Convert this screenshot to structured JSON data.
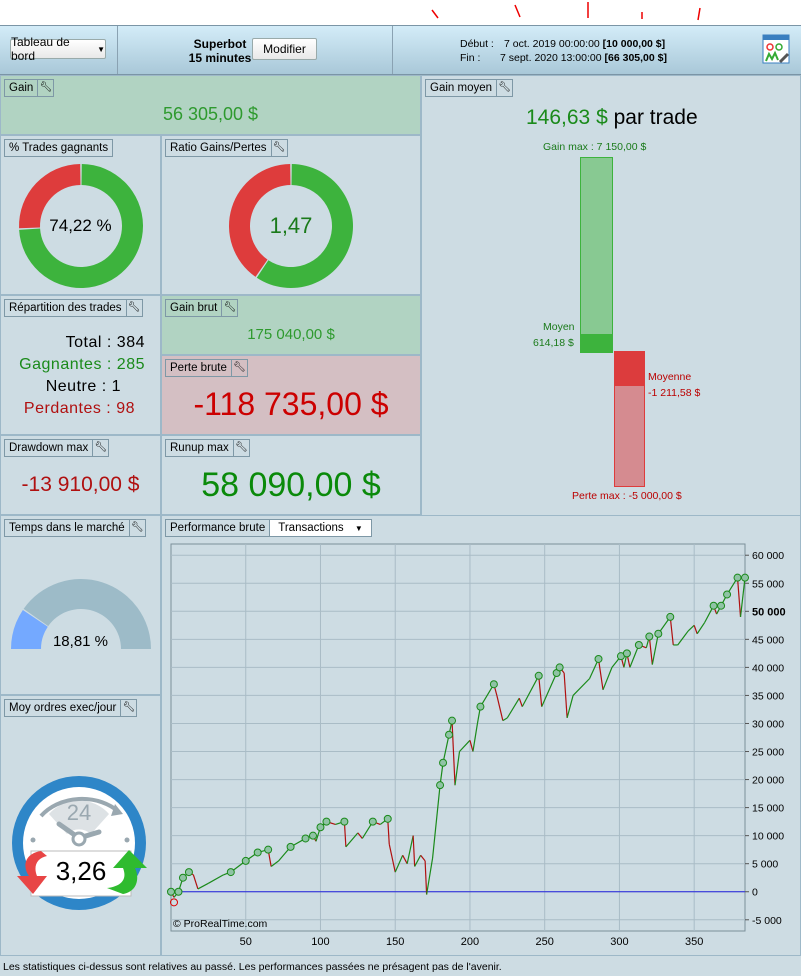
{
  "header": {
    "dashboard_select": "Tableau de bord",
    "strategy_name": "Superbot",
    "timeframe": "15 minutes",
    "modify_button": "Modifier",
    "start_label": "Début :",
    "start_date": "7 oct. 2019 00:00:00",
    "start_value": "[10 000,00 $]",
    "end_label": "Fin :",
    "end_date": "7 sept. 2020 13:00:00",
    "end_value": "[66 305,00 $]",
    "settings_icon": "report-settings-icon"
  },
  "gain": {
    "label": "Gain",
    "value": "56 305,00 $"
  },
  "win_pct": {
    "label": "% Trades gagnants",
    "value": "74,22 %",
    "fraction": 0.7422
  },
  "ratio": {
    "label": "Ratio Gains/Pertes",
    "value": "1,47",
    "fraction": 0.595
  },
  "distribution": {
    "label": "Répartition des trades",
    "total_label": "Total",
    "total": "384",
    "win_label": "Gagnantes",
    "win": "285",
    "neutral_label": "Neutre",
    "neutral": "1",
    "loss_label": "Perdantes",
    "loss": "98"
  },
  "gross_gain": {
    "label": "Gain brut",
    "value": "175 040,00 $"
  },
  "gross_loss": {
    "label": "Perte brute",
    "value": "-118 735,00 $"
  },
  "drawdown": {
    "label": "Drawdown max",
    "value": "-13 910,00 $"
  },
  "runup": {
    "label": "Runup max",
    "value": "58 090,00 $"
  },
  "time_in_market": {
    "label": "Temps dans le marché",
    "value": "18,81 %",
    "fraction": 0.1881
  },
  "orders_per_day": {
    "label": "Moy ordres exec/jour",
    "value": "3,26",
    "clock_label": "24"
  },
  "avg_gain": {
    "label": "Gain moyen",
    "value": "146,63 $",
    "suffix": "par trade",
    "max_gain_label": "Gain max : 7 150,00 $",
    "avg_win_label": "Moyen",
    "avg_win_value": "614,18 $",
    "avg_loss_label": "Moyenne",
    "avg_loss_value": "-1 211,58 $",
    "max_loss_label": "Perte max : -5 000,00 $",
    "max_gain": 7150,
    "avg_win": 614.18,
    "avg_loss": -1211.58,
    "max_loss": -5000
  },
  "performance": {
    "label": "Performance brute",
    "mode_select": "Transactions",
    "watermark": "© ProRealTime.com"
  },
  "chart_data": {
    "type": "line",
    "title": "Performance brute",
    "xlabel": "",
    "ylabel": "",
    "xlim": [
      0,
      384
    ],
    "ylim": [
      -7000,
      62000
    ],
    "x_ticks": [
      "50",
      "100",
      "150",
      "200",
      "250",
      "300",
      "350"
    ],
    "y_ticks": [
      "60 000",
      "55 000",
      "50 000",
      "45 000",
      "40 000",
      "35 000",
      "30 000",
      "25 000",
      "20 000",
      "15 000",
      "10 000",
      "5 000",
      "0",
      "-5 000"
    ],
    "points": [
      [
        0,
        0
      ],
      [
        2,
        -1000
      ],
      [
        5,
        0
      ],
      [
        8,
        2500
      ],
      [
        12,
        3500
      ],
      [
        15,
        3000
      ],
      [
        18,
        500
      ],
      [
        25,
        1500
      ],
      [
        35,
        3000
      ],
      [
        40,
        3500
      ],
      [
        50,
        5500
      ],
      [
        58,
        7000
      ],
      [
        65,
        7500
      ],
      [
        67,
        4500
      ],
      [
        72,
        5500
      ],
      [
        80,
        8000
      ],
      [
        90,
        9500
      ],
      [
        95,
        10000
      ],
      [
        97,
        9000
      ],
      [
        100,
        11500
      ],
      [
        104,
        12500
      ],
      [
        110,
        12000
      ],
      [
        116,
        12500
      ],
      [
        117,
        8000
      ],
      [
        125,
        10500
      ],
      [
        128,
        9500
      ],
      [
        135,
        12500
      ],
      [
        140,
        12000
      ],
      [
        145,
        13000
      ],
      [
        146,
        8500
      ],
      [
        150,
        3500
      ],
      [
        155,
        6500
      ],
      [
        158,
        5000
      ],
      [
        162,
        10000
      ],
      [
        163,
        4500
      ],
      [
        167,
        6500
      ],
      [
        170,
        5500
      ],
      [
        171,
        -500
      ],
      [
        175,
        6000
      ],
      [
        180,
        19000
      ],
      [
        182,
        23000
      ],
      [
        186,
        28000
      ],
      [
        188,
        30500
      ],
      [
        190,
        19000
      ],
      [
        193,
        25000
      ],
      [
        200,
        27000
      ],
      [
        202,
        25000
      ],
      [
        205,
        30000
      ],
      [
        207,
        33000
      ],
      [
        216,
        37000
      ],
      [
        218,
        35000
      ],
      [
        222,
        30500
      ],
      [
        225,
        31000
      ],
      [
        233,
        34500
      ],
      [
        235,
        33000
      ],
      [
        246,
        38500
      ],
      [
        248,
        33000
      ],
      [
        258,
        39000
      ],
      [
        260,
        40000
      ],
      [
        263,
        39000
      ],
      [
        265,
        31000
      ],
      [
        269,
        35000
      ],
      [
        280,
        38000
      ],
      [
        286,
        41500
      ],
      [
        289,
        36000
      ],
      [
        295,
        40000
      ],
      [
        301,
        42000
      ],
      [
        303,
        40000
      ],
      [
        305,
        42500
      ],
      [
        307,
        40000
      ],
      [
        313,
        44000
      ],
      [
        318,
        43500
      ],
      [
        320,
        45500
      ],
      [
        322,
        40500
      ],
      [
        326,
        46000
      ],
      [
        334,
        49000
      ],
      [
        336,
        44000
      ],
      [
        339,
        44000
      ],
      [
        346,
        46500
      ],
      [
        350,
        47500
      ],
      [
        352,
        46000
      ],
      [
        357,
        48000
      ],
      [
        363,
        51000
      ],
      [
        365,
        49500
      ],
      [
        368,
        51000
      ],
      [
        372,
        53000
      ],
      [
        379,
        56000
      ],
      [
        381,
        49000
      ],
      [
        384,
        56000
      ]
    ]
  }
}
